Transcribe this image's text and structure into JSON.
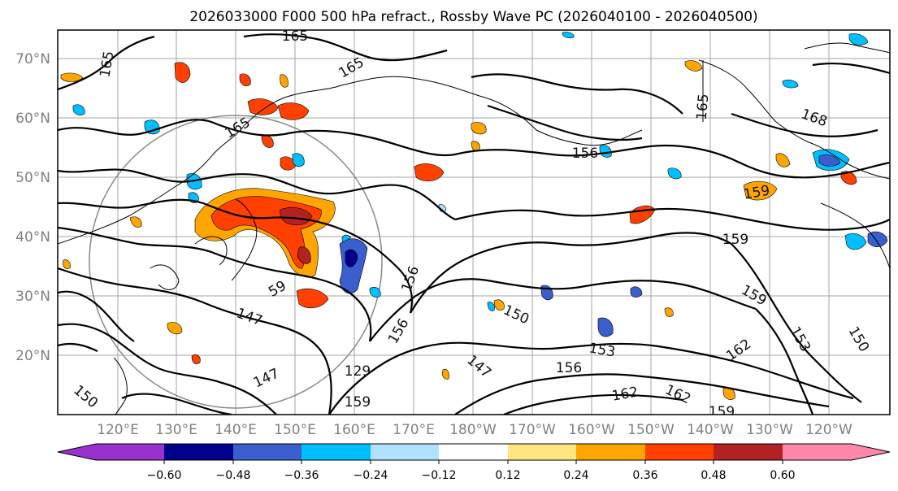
{
  "title": "2026033000 F000 500 hPa refract., Rossby Wave PC (2026040100 - 2026040500)",
  "lat_labels": [
    "70°N",
    "60°N",
    "50°N",
    "40°N",
    "30°N",
    "20°N"
  ],
  "lon_labels": [
    "120°E",
    "130°E",
    "140°E",
    "150°E",
    "160°E",
    "170°E",
    "180°W",
    "170°W",
    "160°W",
    "150°W",
    "140°W",
    "130°W",
    "120°W"
  ],
  "contour_labels": [
    "165",
    "165",
    "165",
    "165",
    "168",
    "165",
    "156",
    "159",
    "159",
    "159",
    "59",
    "147",
    "147",
    "150",
    "156",
    "156",
    "150",
    "147",
    "153",
    "156",
    "162",
    "162",
    "162",
    "159",
    "153",
    "150",
    "129",
    "159"
  ],
  "colorbar": {
    "ticks": [
      "−0.60",
      "−0.48",
      "−0.36",
      "−0.24",
      "−0.12",
      "0.12",
      "0.24",
      "0.36",
      "0.48",
      "0.60"
    ],
    "colors": [
      "#9932cc",
      "#00008b",
      "#3a5fcd",
      "#00bfff",
      "#b0e2ff",
      "#ffffff",
      "#ffe680",
      "#ffa500",
      "#ff4000",
      "#b22222",
      "#ff88aa"
    ]
  }
}
